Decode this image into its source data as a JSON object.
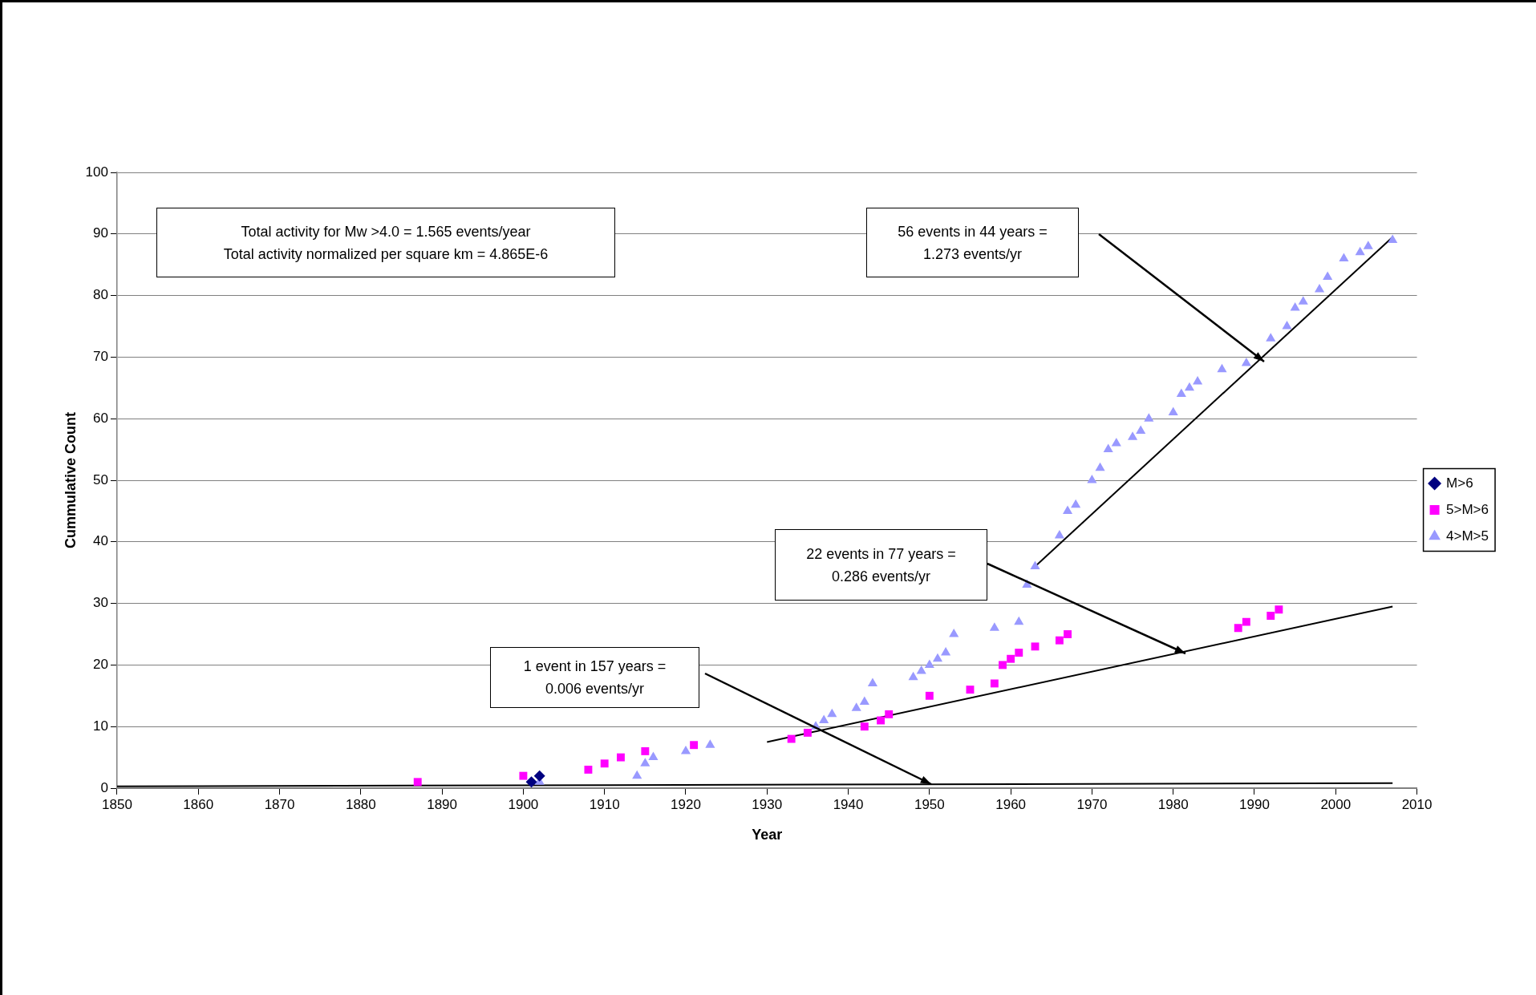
{
  "chart_data": {
    "type": "scatter",
    "xlabel": "Year",
    "ylabel": "Cummulative Count",
    "xlim": [
      1850,
      2010
    ],
    "xticks": [
      1850,
      1860,
      1870,
      1880,
      1890,
      1900,
      1910,
      1920,
      1930,
      1940,
      1950,
      1960,
      1970,
      1980,
      1990,
      2000,
      2010
    ],
    "ylim": [
      0,
      100
    ],
    "yticks": [
      0,
      10,
      20,
      30,
      40,
      50,
      60,
      70,
      80,
      90,
      100
    ],
    "grid": "y",
    "legend": "right",
    "series": [
      {
        "name": "M>6",
        "color": "#000080",
        "marker": "diamond",
        "x": [
          1901,
          1902
        ],
        "values": [
          1,
          2
        ]
      },
      {
        "name": "5>M>6",
        "color": "#ff00ff",
        "marker": "square",
        "x": [
          1887,
          1900,
          1908,
          1910,
          1912,
          1915,
          1921,
          1933,
          1935,
          1942,
          1944,
          1945,
          1950,
          1955,
          1958,
          1959,
          1960,
          1961,
          1963,
          1966,
          1967,
          1988,
          1989,
          1992,
          1993
        ],
        "values": [
          1,
          2,
          3,
          4,
          5,
          6,
          7,
          8,
          9,
          10,
          11,
          12,
          15,
          16,
          17,
          20,
          21,
          22,
          23,
          24,
          25,
          26,
          27,
          28,
          29
        ]
      },
      {
        "name": "4>M>5",
        "color": "#9999ff",
        "marker": "triangle",
        "x": [
          1902,
          1914,
          1915,
          1916,
          1920,
          1923,
          1936,
          1937,
          1938,
          1941,
          1942,
          1943,
          1948,
          1949,
          1950,
          1951,
          1952,
          1953,
          1958,
          1961,
          1962,
          1963,
          1966,
          1967,
          1968,
          1970,
          1971,
          1972,
          1973,
          1975,
          1976,
          1977,
          1980,
          1981,
          1982,
          1983,
          1986,
          1989,
          1992,
          1994,
          1995,
          1996,
          1998,
          1999,
          2001,
          2003,
          2004,
          2007
        ],
        "values": [
          1,
          2,
          4,
          5,
          6,
          7,
          10,
          11,
          12,
          13,
          14,
          17,
          18,
          19,
          20,
          21,
          22,
          25,
          26,
          27,
          33,
          36,
          41,
          45,
          46,
          50,
          52,
          55,
          56,
          57,
          58,
          60,
          61,
          64,
          65,
          66,
          68,
          69,
          73,
          75,
          78,
          79,
          81,
          83,
          86,
          87,
          88,
          89
        ]
      },
      {
        "type": "line",
        "color": "#000000",
        "marker": "none",
        "x": [
          1850,
          2007
        ],
        "values": [
          0.3,
          0.8
        ]
      },
      {
        "type": "line",
        "color": "#000000",
        "marker": "none",
        "x": [
          1930,
          2007
        ],
        "values": [
          7.5,
          29.5
        ]
      },
      {
        "type": "line",
        "color": "#000000",
        "marker": "none",
        "x": [
          1963,
          2007
        ],
        "values": [
          36,
          89.5
        ]
      }
    ],
    "annotations": [
      "Total activity for Mw >4.0 = 1.565 events/year\nTotal activity normalized per square km = 4.865E-6",
      "56 events in 44 years =\n1.273 events/yr",
      "22 events in 77 years =\n0.286 events/yr",
      "1 event in 157 years =\n0.006 events/yr"
    ]
  }
}
